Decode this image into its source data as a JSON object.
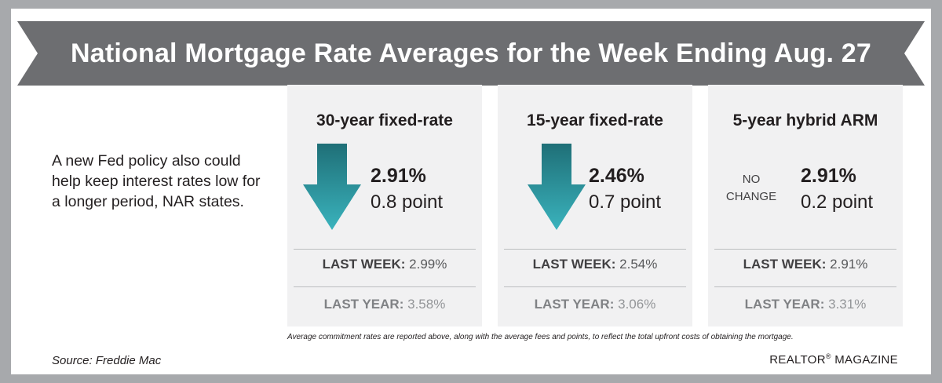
{
  "header": {
    "title": "National Mortgage Rate Averages for the Week Ending Aug. 27"
  },
  "intro": {
    "text": "A new Fed policy also could help keep interest rates low for a longer period, NAR states."
  },
  "cards": [
    {
      "title": "30-year fixed-rate",
      "direction": "down",
      "direction_icon": "down-arrow-icon",
      "rate": "2.91%",
      "change": "0.8 point",
      "last_week_label": "LAST WEEK:",
      "last_week_value": "2.99%",
      "last_year_label": "LAST YEAR:",
      "last_year_value": "3.58%"
    },
    {
      "title": "15-year fixed-rate",
      "direction": "down",
      "direction_icon": "down-arrow-icon",
      "rate": "2.46%",
      "change": "0.7 point",
      "last_week_label": "LAST WEEK:",
      "last_week_value": "2.54%",
      "last_year_label": "LAST YEAR:",
      "last_year_value": "3.06%"
    },
    {
      "title": "5-year hybrid ARM",
      "direction": "none",
      "no_change_line1": "NO",
      "no_change_line2": "CHANGE",
      "rate": "2.91%",
      "change": "0.2 point",
      "last_week_label": "LAST WEEK:",
      "last_week_value": "2.91%",
      "last_year_label": "LAST YEAR:",
      "last_year_value": "3.31%"
    }
  ],
  "footnote": "Average commitment rates are reported above, along with the average fees and points, to reflect the total upfront costs of obtaining the mortgage.",
  "source": "Source: Freddie Mac",
  "brand": {
    "name": "REALTOR",
    "mark": "®",
    "suffix": " MAGAZINE"
  },
  "colors": {
    "banner": "#6d6e71",
    "arrow_top": "#1f6f77",
    "arrow_bottom": "#3ab3bd",
    "card_bg": "#f1f1f2",
    "frame": "#a7a9ac"
  }
}
